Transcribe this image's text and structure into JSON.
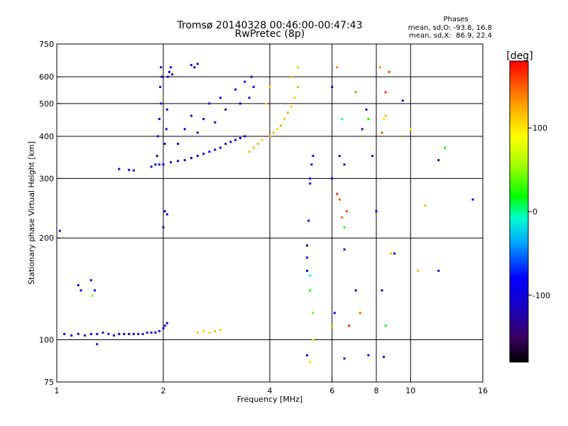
{
  "header": {
    "title_line1": "Tromsø 20140328 00:46:00-00:47:43",
    "title_line2": "RwPretec (8p)",
    "stats_title": "Phases",
    "stats_line1": "mean, sd,O: -93.8, 16.8",
    "stats_line2": "mean, sd,X:  86.9, 22.4"
  },
  "colorbar": {
    "unit_label": "[deg]",
    "tick_labels": [
      "100",
      "0",
      "-100"
    ],
    "tick_values": [
      100,
      0,
      -100
    ],
    "range": [
      -180,
      180
    ],
    "colors": [
      "#000000",
      "#4b0082",
      "#0000ff",
      "#00ffff",
      "#00ff00",
      "#ffff00",
      "#ffa500",
      "#ff0000"
    ]
  },
  "chart_data": {
    "type": "scatter",
    "title": "Tromsø 20140328 00:46:00-00:47:43",
    "subtitle": "RwPretec (8p)",
    "xlabel": "Frequency [MHz]",
    "ylabel": "Stationary phase Virtual Height [km]",
    "x_scale": "log",
    "y_scale": "log",
    "xlim": [
      1,
      16
    ],
    "ylim": [
      75,
      750
    ],
    "x_ticks": [
      1,
      2,
      4,
      6,
      8,
      10,
      16
    ],
    "x_tick_labels": [
      "1",
      "2",
      "4",
      "6",
      "8",
      "10",
      "16"
    ],
    "y_ticks": [
      75,
      100,
      200,
      300,
      400,
      500,
      600,
      750
    ],
    "y_tick_labels": [
      "75",
      "100",
      "200",
      "300",
      "400",
      "500",
      "600",
      "750"
    ],
    "grid_x": [
      2,
      4,
      6,
      8,
      10
    ],
    "grid_y": [
      100,
      200,
      300,
      400,
      500,
      600
    ],
    "grid": true,
    "color_variable": "phase [deg]",
    "series": [
      {
        "points": [
          [
            1.05,
            104,
            -100
          ],
          [
            1.1,
            103,
            -100
          ],
          [
            1.15,
            104,
            -100
          ],
          [
            1.2,
            103,
            -100
          ],
          [
            1.25,
            104,
            -100
          ],
          [
            1.3,
            104,
            -100
          ],
          [
            1.35,
            105,
            -100
          ],
          [
            1.4,
            104,
            -100
          ],
          [
            1.45,
            103,
            -100
          ],
          [
            1.5,
            104,
            -100
          ],
          [
            1.55,
            104,
            -100
          ],
          [
            1.6,
            104,
            -100
          ],
          [
            1.65,
            104,
            -100
          ],
          [
            1.7,
            104,
            -100
          ],
          [
            1.75,
            104,
            -100
          ],
          [
            1.8,
            105,
            -100
          ],
          [
            1.85,
            105,
            -100
          ],
          [
            1.9,
            105,
            -100
          ],
          [
            1.95,
            106,
            -100
          ],
          [
            2.0,
            108,
            -100
          ],
          [
            2.02,
            110,
            -100
          ],
          [
            2.05,
            112,
            -100
          ],
          [
            1.15,
            145,
            -100
          ],
          [
            1.17,
            140,
            -100
          ],
          [
            1.25,
            150,
            -100
          ],
          [
            1.28,
            140,
            -100
          ],
          [
            1.26,
            135,
            40
          ],
          [
            1.3,
            97,
            -100
          ],
          [
            1.02,
            210,
            -100
          ],
          [
            1.5,
            320,
            -100
          ],
          [
            1.6,
            318,
            -100
          ],
          [
            1.65,
            317,
            -100
          ],
          [
            1.85,
            325,
            -100
          ],
          [
            1.9,
            330,
            -100
          ],
          [
            1.95,
            330,
            -100
          ],
          [
            2.0,
            330,
            -100
          ],
          [
            2.1,
            335,
            -100
          ],
          [
            2.2,
            338,
            -100
          ],
          [
            2.3,
            340,
            -100
          ],
          [
            2.4,
            345,
            -100
          ],
          [
            2.5,
            350,
            -100
          ],
          [
            2.6,
            355,
            -100
          ],
          [
            2.7,
            360,
            -100
          ],
          [
            2.8,
            365,
            -100
          ],
          [
            2.9,
            370,
            -100
          ],
          [
            3.0,
            380,
            -100
          ],
          [
            3.1,
            385,
            -100
          ],
          [
            3.2,
            390,
            -100
          ],
          [
            3.3,
            395,
            -100
          ],
          [
            3.4,
            400,
            -100
          ],
          [
            1.92,
            350,
            -100
          ],
          [
            1.93,
            400,
            -100
          ],
          [
            1.95,
            450,
            -100
          ],
          [
            1.97,
            500,
            -100
          ],
          [
            1.96,
            560,
            -100
          ],
          [
            1.98,
            600,
            -100
          ],
          [
            1.97,
            640,
            -100
          ],
          [
            2.02,
            380,
            -100
          ],
          [
            2.04,
            420,
            -100
          ],
          [
            2.05,
            480,
            -100
          ],
          [
            2.06,
            600,
            -100
          ],
          [
            2.08,
            620,
            -100
          ],
          [
            2.1,
            640,
            -100
          ],
          [
            2.12,
            610,
            -100
          ],
          [
            2.2,
            380,
            -100
          ],
          [
            2.3,
            420,
            -100
          ],
          [
            2.4,
            460,
            -100
          ],
          [
            2.5,
            410,
            -100
          ],
          [
            2.6,
            450,
            -100
          ],
          [
            2.7,
            500,
            -100
          ],
          [
            2.8,
            440,
            -100
          ],
          [
            2.9,
            520,
            -100
          ],
          [
            3.0,
            480,
            -100
          ],
          [
            3.2,
            550,
            -100
          ],
          [
            3.3,
            500,
            -100
          ],
          [
            3.4,
            580,
            -100
          ],
          [
            3.5,
            520,
            -100
          ],
          [
            3.55,
            600,
            -100
          ],
          [
            3.6,
            560,
            -100
          ],
          [
            2.4,
            650,
            -100
          ],
          [
            2.45,
            640,
            -100
          ],
          [
            2.5,
            655,
            -100
          ],
          [
            2.02,
            240,
            -100
          ],
          [
            2.05,
            235,
            -100
          ],
          [
            2.0,
            215,
            -100
          ],
          [
            3.5,
            360,
            120
          ],
          [
            3.6,
            370,
            120
          ],
          [
            3.7,
            380,
            120
          ],
          [
            3.8,
            390,
            110
          ],
          [
            4.0,
            400,
            120
          ],
          [
            4.1,
            410,
            120
          ],
          [
            4.2,
            420,
            110
          ],
          [
            4.3,
            430,
            120
          ],
          [
            4.4,
            450,
            120
          ],
          [
            4.5,
            470,
            120
          ],
          [
            4.6,
            490,
            110
          ],
          [
            4.7,
            520,
            110
          ],
          [
            4.8,
            560,
            120
          ],
          [
            4.6,
            600,
            120
          ],
          [
            4.8,
            640,
            110
          ],
          [
            3.9,
            500,
            110
          ],
          [
            4.0,
            560,
            110
          ],
          [
            2.5,
            105,
            110
          ],
          [
            2.6,
            106,
            110
          ],
          [
            2.7,
            105,
            110
          ],
          [
            2.8,
            106,
            120
          ],
          [
            2.9,
            107,
            110
          ],
          [
            5.1,
            160,
            -100
          ],
          [
            5.1,
            175,
            -100
          ],
          [
            5.1,
            190,
            -100
          ],
          [
            5.2,
            155,
            0
          ],
          [
            5.2,
            140,
            20
          ],
          [
            5.3,
            120,
            40
          ],
          [
            5.3,
            100,
            100
          ],
          [
            5.1,
            90,
            -100
          ],
          [
            5.2,
            86,
            110
          ],
          [
            5.15,
            225,
            -100
          ],
          [
            5.2,
            300,
            -100
          ],
          [
            5.25,
            330,
            -100
          ],
          [
            5.3,
            350,
            -100
          ],
          [
            5.2,
            290,
            -100
          ],
          [
            6.0,
            300,
            -100
          ],
          [
            6.2,
            270,
            170
          ],
          [
            6.3,
            260,
            150
          ],
          [
            6.4,
            230,
            150
          ],
          [
            6.5,
            215,
            20
          ],
          [
            6.6,
            240,
            160
          ],
          [
            6.5,
            330,
            -100
          ],
          [
            6.3,
            350,
            -100
          ],
          [
            6.4,
            450,
            0
          ],
          [
            6.0,
            560,
            -100
          ],
          [
            6.2,
            640,
            140
          ],
          [
            6.0,
            110,
            110
          ],
          [
            6.1,
            120,
            -100
          ],
          [
            6.5,
            185,
            -100
          ],
          [
            6.7,
            110,
            170
          ],
          [
            7.0,
            140,
            -100
          ],
          [
            7.2,
            120,
            150
          ],
          [
            6.5,
            88,
            -100
          ],
          [
            7.0,
            540,
            140
          ],
          [
            7.3,
            420,
            -100
          ],
          [
            7.5,
            480,
            -100
          ],
          [
            7.6,
            450,
            20
          ],
          [
            7.8,
            350,
            -100
          ],
          [
            8.0,
            240,
            -100
          ],
          [
            8.3,
            410,
            150
          ],
          [
            8.4,
            450,
            100
          ],
          [
            8.5,
            460,
            120
          ],
          [
            8.7,
            620,
            160
          ],
          [
            8.2,
            640,
            130
          ],
          [
            8.5,
            540,
            160
          ],
          [
            8.8,
            180,
            120
          ],
          [
            8.3,
            140,
            -100
          ],
          [
            8.5,
            110,
            20
          ],
          [
            8.4,
            89,
            -100
          ],
          [
            7.6,
            90,
            -100
          ],
          [
            9.5,
            510,
            -100
          ],
          [
            10.0,
            420,
            100
          ],
          [
            10.5,
            160,
            120
          ],
          [
            11.0,
            250,
            120
          ],
          [
            12.0,
            340,
            -100
          ],
          [
            12.5,
            370,
            20
          ],
          [
            12.0,
            160,
            -100
          ],
          [
            15.0,
            260,
            -100
          ],
          [
            9.0,
            180,
            -100
          ]
        ]
      }
    ]
  }
}
